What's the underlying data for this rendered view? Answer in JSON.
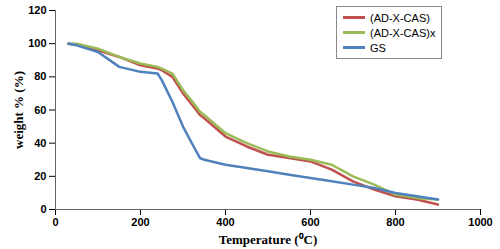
{
  "chart_data": {
    "type": "line",
    "x_label": "Temperature (⁰C)",
    "y_label": "weight % (%)",
    "x": [
      30,
      50,
      100,
      150,
      200,
      240,
      250,
      275,
      300,
      325,
      340,
      350,
      400,
      450,
      500,
      550,
      600,
      650,
      700,
      750,
      800,
      850,
      900
    ],
    "series": [
      {
        "name": "(AD-X-CAS)",
        "color": "#c0504d",
        "values": [
          100,
          99.5,
          96,
          92,
          87,
          85,
          84,
          80,
          70,
          62,
          57,
          55,
          44,
          38,
          33,
          31,
          29,
          24,
          17,
          12,
          8,
          6,
          3
        ]
      },
      {
        "name": "(AD-X-CAS)x",
        "color": "#9bbb59",
        "values": [
          100,
          100,
          97,
          92,
          88,
          86,
          85,
          82,
          72,
          64,
          59,
          57,
          46,
          40,
          35,
          32,
          30,
          27,
          20,
          15,
          9,
          7,
          6
        ]
      },
      {
        "name": "GS",
        "color": "#4f81bd",
        "values": [
          100,
          99,
          95,
          86,
          83,
          82,
          78,
          65,
          50,
          38,
          31,
          30,
          27,
          25,
          23,
          21,
          19,
          17,
          15,
          13,
          10,
          8,
          6
        ]
      }
    ],
    "xlim": [
      0,
      1000
    ],
    "xticks": [
      0,
      200,
      400,
      600,
      800,
      1000
    ],
    "ylim": [
      0,
      120
    ],
    "yticks": [
      0,
      20,
      40,
      60,
      80,
      100,
      120
    ],
    "legend": "top-right"
  }
}
